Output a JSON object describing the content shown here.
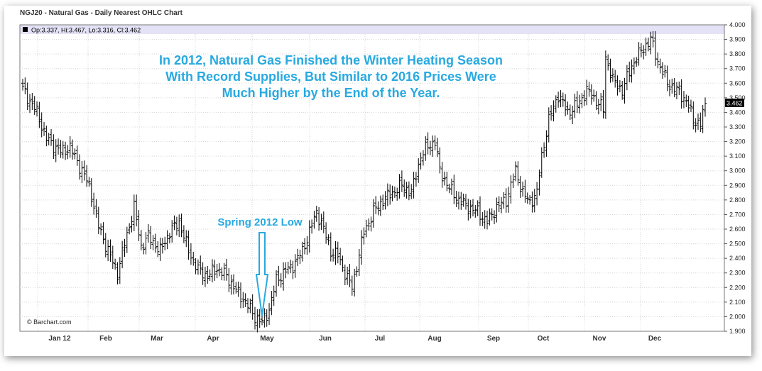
{
  "chart_data": {
    "type": "ohlc",
    "title": "NGJ20 - Natural Gas - Daily Nearest OHLC Chart",
    "info_line": "Op:3.337, Hi:3.467, Lo:3.316, Cl:3.462",
    "source": "© Barchart.com",
    "last_price_label": "3.462",
    "ylim": [
      1.9,
      4.0
    ],
    "y_ticks": [
      "1.900",
      "2.000",
      "2.100",
      "2.200",
      "2.300",
      "2.400",
      "2.500",
      "2.600",
      "2.700",
      "2.800",
      "2.900",
      "3.000",
      "3.100",
      "3.200",
      "3.300",
      "3.400",
      "3.500",
      "3.600",
      "3.700",
      "3.800",
      "3.900",
      "4.000"
    ],
    "x_ticks": [
      "Jan 12",
      "Feb",
      "Mar",
      "Apr",
      "May",
      "Jun",
      "Jul",
      "Aug",
      "Sep",
      "Oct",
      "Nov",
      "Dec"
    ],
    "annotations": {
      "headline": [
        "In 2012, Natural Gas Finished the Winter Heating Season",
        "With Record Supplies, But Similar to 2016 Prices Were",
        "Much Higher by the End of the Year."
      ],
      "low_label": "Spring 2012 Low"
    },
    "close_anchors": [
      [
        0,
        3.56
      ],
      [
        6,
        3.4
      ],
      [
        10,
        3.22
      ],
      [
        16,
        3.13
      ],
      [
        20,
        3.16
      ],
      [
        25,
        3.0
      ],
      [
        28,
        2.9
      ],
      [
        32,
        2.62
      ],
      [
        36,
        2.45
      ],
      [
        40,
        2.3
      ],
      [
        43,
        2.5
      ],
      [
        47,
        2.75
      ],
      [
        50,
        2.48
      ],
      [
        53,
        2.55
      ],
      [
        58,
        2.45
      ],
      [
        62,
        2.58
      ],
      [
        66,
        2.65
      ],
      [
        70,
        2.45
      ],
      [
        74,
        2.32
      ],
      [
        78,
        2.28
      ],
      [
        82,
        2.33
      ],
      [
        86,
        2.28
      ],
      [
        90,
        2.18
      ],
      [
        94,
        2.1
      ],
      [
        98,
        2.0
      ],
      [
        101,
        1.96
      ],
      [
        104,
        2.05
      ],
      [
        107,
        2.25
      ],
      [
        110,
        2.3
      ],
      [
        114,
        2.35
      ],
      [
        118,
        2.45
      ],
      [
        121,
        2.58
      ],
      [
        124,
        2.72
      ],
      [
        127,
        2.6
      ],
      [
        130,
        2.45
      ],
      [
        133,
        2.42
      ],
      [
        136,
        2.3
      ],
      [
        139,
        2.2
      ],
      [
        141,
        2.35
      ],
      [
        144,
        2.58
      ],
      [
        148,
        2.72
      ],
      [
        152,
        2.8
      ],
      [
        156,
        2.85
      ],
      [
        160,
        2.9
      ],
      [
        164,
        2.85
      ],
      [
        168,
        3.1
      ],
      [
        171,
        3.17
      ],
      [
        174,
        3.2
      ],
      [
        176,
        3.0
      ],
      [
        180,
        2.88
      ],
      [
        184,
        2.8
      ],
      [
        188,
        2.75
      ],
      [
        192,
        2.72
      ],
      [
        196,
        2.65
      ],
      [
        200,
        2.75
      ],
      [
        204,
        2.8
      ],
      [
        208,
        3.0
      ],
      [
        211,
        2.85
      ],
      [
        214,
        2.78
      ],
      [
        217,
        2.85
      ],
      [
        219,
        3.1
      ],
      [
        222,
        3.35
      ],
      [
        226,
        3.52
      ],
      [
        230,
        3.4
      ],
      [
        234,
        3.45
      ],
      [
        238,
        3.55
      ],
      [
        242,
        3.48
      ],
      [
        245,
        3.42
      ],
      [
        246,
        3.78
      ],
      [
        249,
        3.62
      ],
      [
        253,
        3.55
      ],
      [
        257,
        3.72
      ],
      [
        261,
        3.82
      ],
      [
        265,
        3.9
      ],
      [
        268,
        3.75
      ],
      [
        272,
        3.6
      ],
      [
        276,
        3.55
      ],
      [
        280,
        3.48
      ],
      [
        283,
        3.35
      ],
      [
        286,
        3.32
      ],
      [
        288,
        3.46
      ]
    ]
  }
}
